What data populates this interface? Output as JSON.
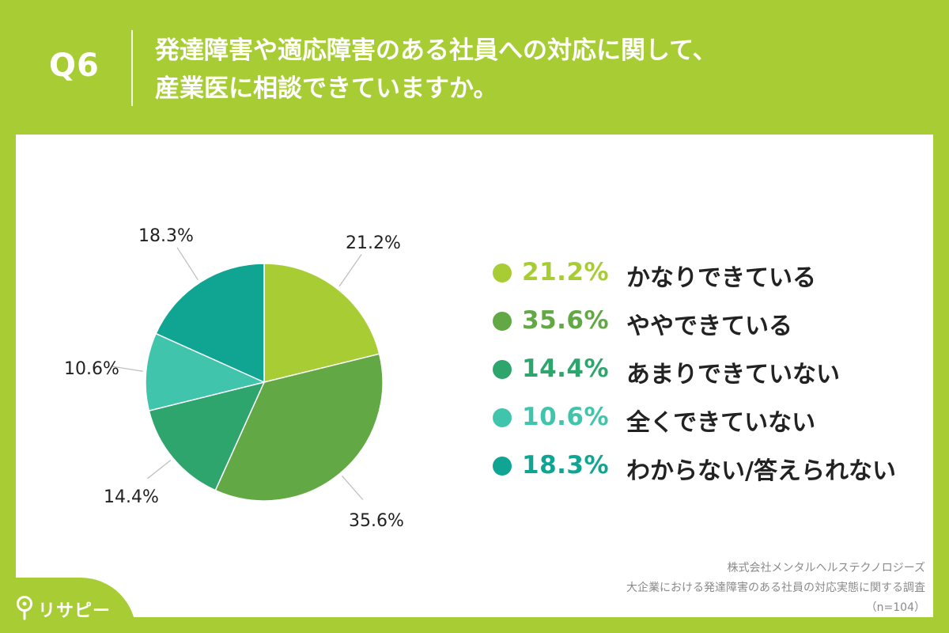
{
  "header": {
    "question_no": "Q6",
    "title_line1": "発達障害や適応障害のある社員への対応に関して、",
    "title_line2": "産業医に相談できていますか。"
  },
  "chart_data": {
    "type": "pie",
    "title": "",
    "slices": [
      {
        "label": "かなりできている",
        "value": 21.2,
        "display": "21.2%",
        "color": "#a8cd34"
      },
      {
        "label": "ややできている",
        "value": 35.6,
        "display": "35.6%",
        "color": "#62a844"
      },
      {
        "label": "あまりできていない",
        "value": 14.4,
        "display": "14.4%",
        "color": "#2fa56e"
      },
      {
        "label": "全くできていない",
        "value": 10.6,
        "display": "10.6%",
        "color": "#40c5ac"
      },
      {
        "label": "わからない/答えられない",
        "value": 18.3,
        "display": "18.3%",
        "color": "#0fa592"
      }
    ],
    "start": "12 o'clock",
    "direction": "clockwise",
    "legend_position": "right"
  },
  "footer": {
    "company": "株式会社メンタルヘルステクノロジーズ",
    "survey": "大企業における発達障害のある社員の対応実態に関する調査",
    "sample": "（n=104）"
  },
  "brand": {
    "name": "リサピー",
    "color": "#a8cd34"
  }
}
